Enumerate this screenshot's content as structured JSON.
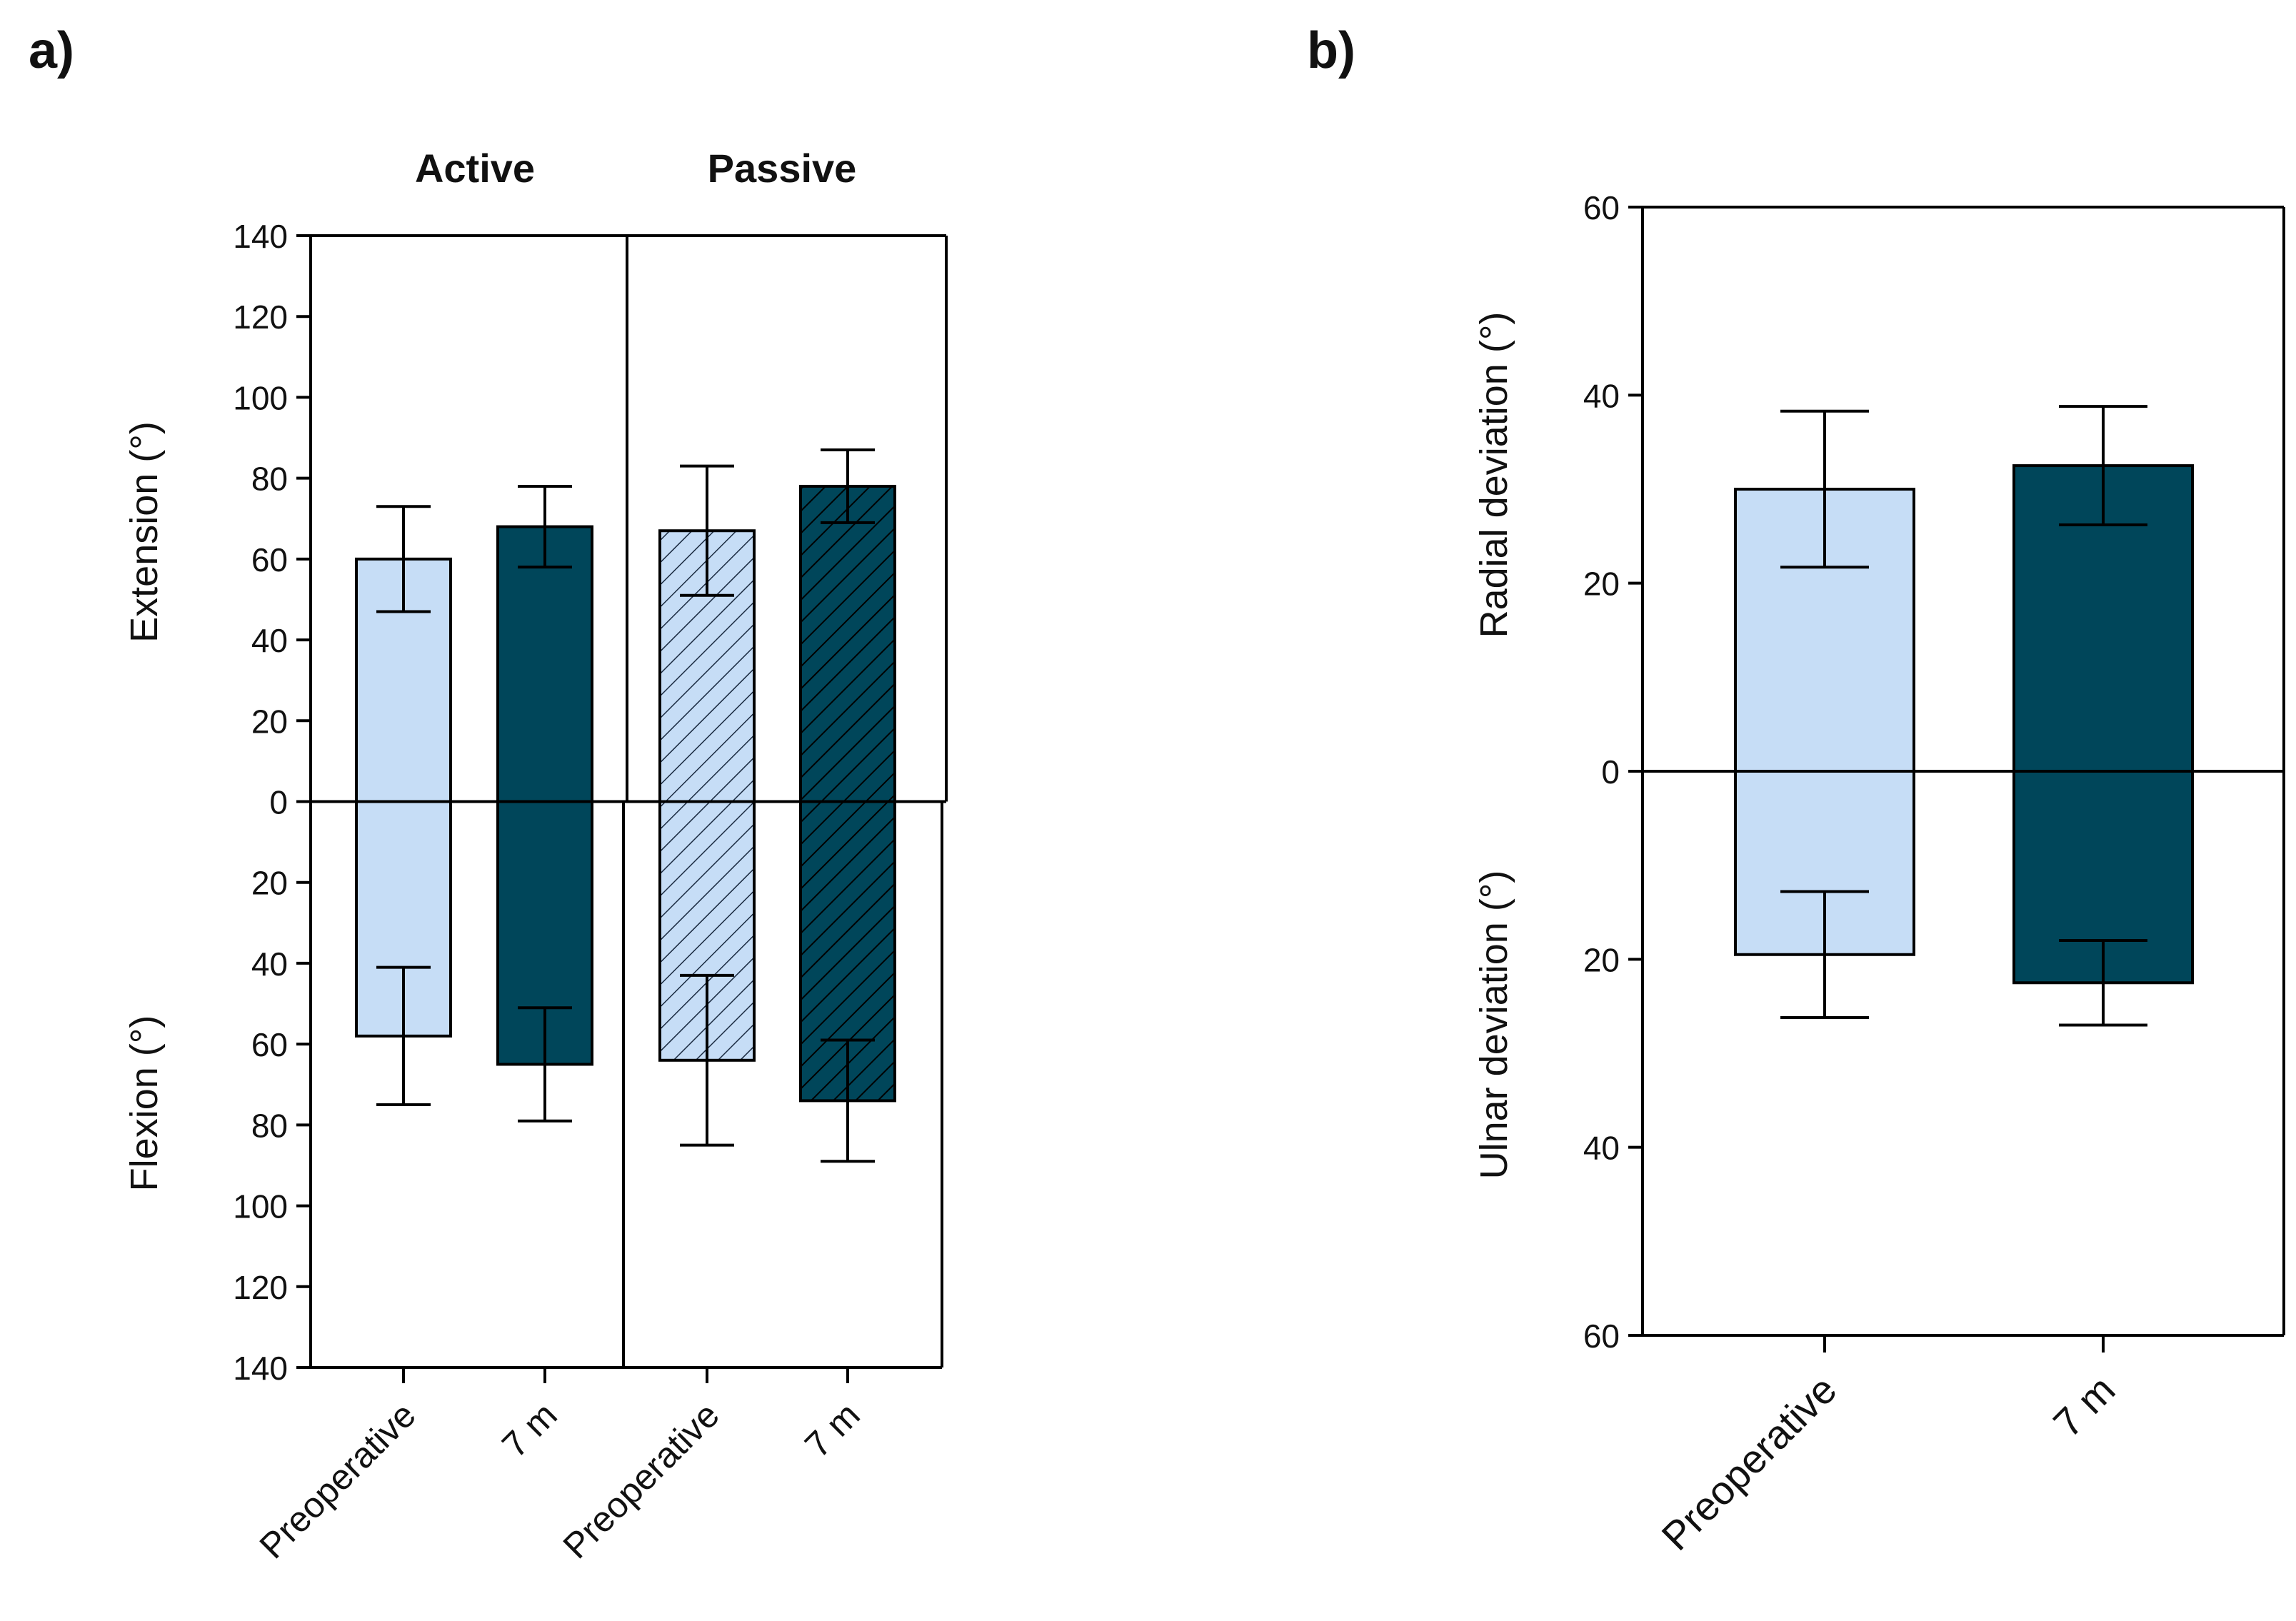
{
  "colors": {
    "light": "#c6ddf6",
    "dark": "#00465a",
    "stroke": "#000000"
  },
  "chart_data": [
    {
      "panel_label": "a)",
      "type": "bar",
      "groups": [
        "Active",
        "Passive"
      ],
      "categories": [
        "Preoperative",
        "7 m",
        "Preoperative",
        "7 m"
      ],
      "hatched": [
        false,
        false,
        true,
        true
      ],
      "ylabel_top": "Extension (°)",
      "ylabel_bottom": "Flexion (°)",
      "ylim": [
        -140,
        140
      ],
      "ticks": [
        140,
        120,
        100,
        80,
        60,
        40,
        20,
        0,
        20,
        40,
        60,
        80,
        100,
        120,
        140
      ],
      "series": [
        {
          "name": "Extension",
          "values": [
            60,
            68,
            67,
            78
          ],
          "error": [
            13,
            10,
            16,
            9
          ]
        },
        {
          "name": "Flexion",
          "values": [
            -58,
            -65,
            -64,
            -74
          ],
          "error": [
            17,
            14,
            21,
            15
          ]
        }
      ]
    },
    {
      "panel_label": "b)",
      "type": "bar",
      "categories": [
        "Preoperative",
        "7 m"
      ],
      "ylabel_top": "Radial deviation (°)",
      "ylabel_bottom": "Ulnar deviation (°)",
      "ylim": [
        -60,
        60
      ],
      "ticks": [
        60,
        40,
        20,
        0,
        20,
        40,
        60
      ],
      "series": [
        {
          "name": "Radial deviation",
          "values": [
            30,
            32.5
          ],
          "error": [
            8.3,
            6.3
          ]
        },
        {
          "name": "Ulnar deviation",
          "values": [
            -19.5,
            -22.5
          ],
          "error": [
            6.7,
            4.5
          ]
        }
      ]
    }
  ]
}
